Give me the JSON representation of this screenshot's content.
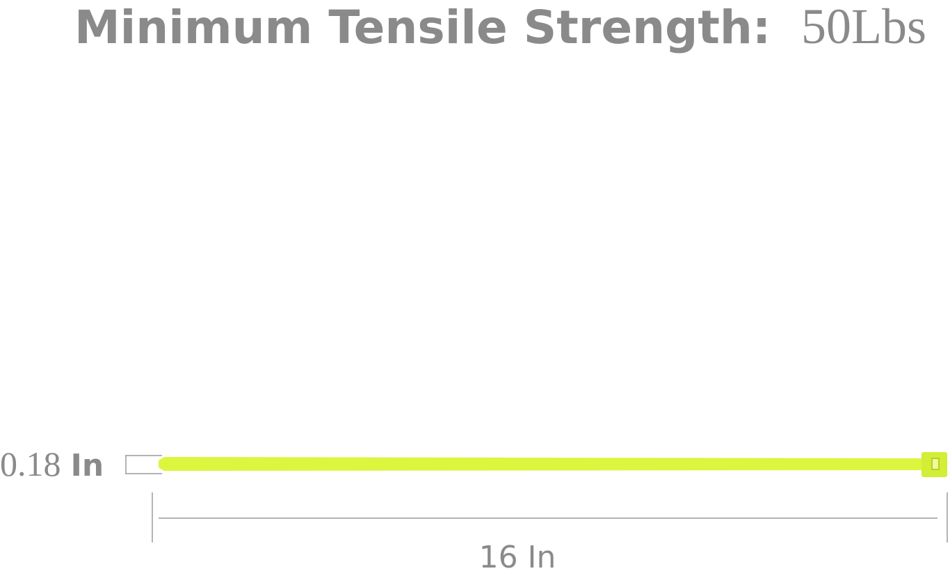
{
  "header": {
    "label": "Minimum Tensile Strength:",
    "value": "50Lbs"
  },
  "width": {
    "value": "0.18",
    "unit": "In"
  },
  "length": "16 In"
}
